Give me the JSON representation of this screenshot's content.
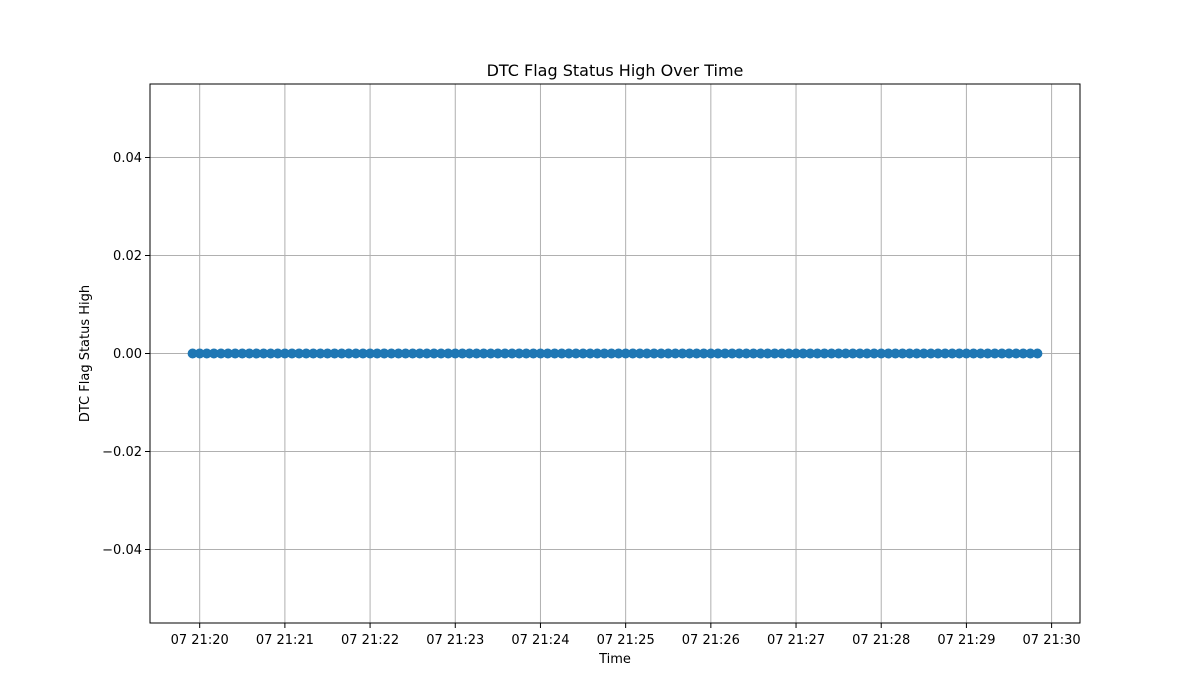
{
  "chart_data": {
    "type": "scatter",
    "title": "DTC Flag Status High Over Time",
    "xlabel": "Time",
    "ylabel": "DTC Flag Status High",
    "x_ticks": [
      "07 21:20",
      "07 21:21",
      "07 21:22",
      "07 21:23",
      "07 21:24",
      "07 21:25",
      "07 21:26",
      "07 21:27",
      "07 21:28",
      "07 21:29",
      "07 21:30"
    ],
    "y_ticks": [
      "0.04",
      "0.02",
      "0.00",
      "−0.02",
      "−0.04"
    ],
    "y_tick_values": [
      0.04,
      0.02,
      0.0,
      -0.02,
      -0.04
    ],
    "ylim": [
      -0.055,
      0.055
    ],
    "xlim": [
      "07 21:19:25",
      "07 21:30:20"
    ],
    "grid": true,
    "series": [
      {
        "color": "#1f77b4",
        "x_start": "07 21:19:55",
        "x_end": "07 21:29:50",
        "y": 0.0,
        "point_count": 120
      }
    ]
  }
}
